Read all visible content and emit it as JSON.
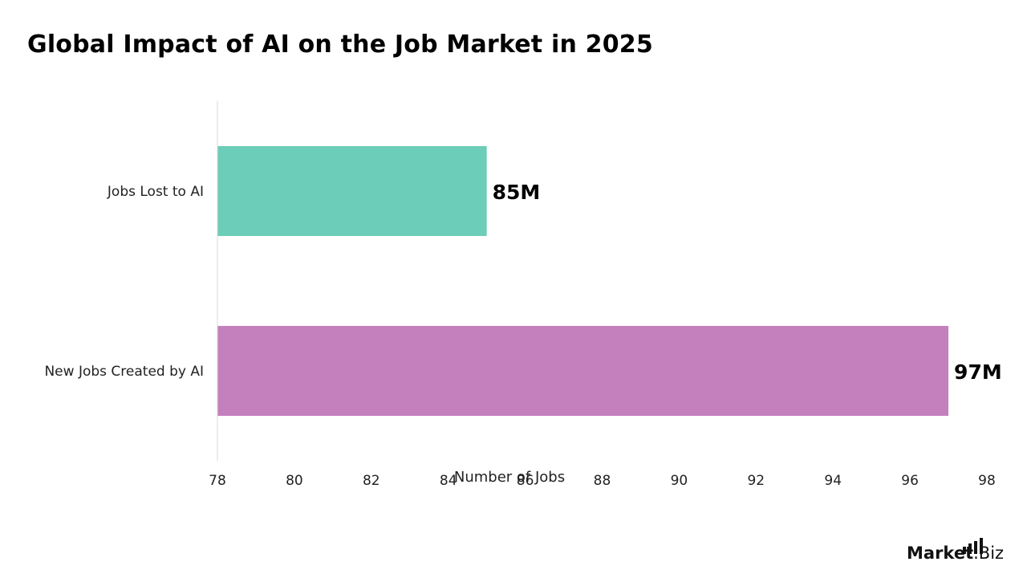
{
  "chart_data": {
    "type": "bar",
    "orientation": "horizontal",
    "title": "Global Impact of AI on the Job Market in 2025",
    "xlabel": "Number of Jobs",
    "ylabel": "",
    "xlim": [
      78,
      98
    ],
    "xticks": [
      "78",
      "80",
      "82",
      "84",
      "86",
      "88",
      "90",
      "92",
      "94",
      "96",
      "98"
    ],
    "categories": [
      "Jobs Lost to AI",
      "New Jobs Created by AI"
    ],
    "values": [
      85,
      97
    ],
    "data_labels": [
      "85M",
      "97M"
    ],
    "colors": [
      "#6ccdb8",
      "#c47fbd"
    ],
    "grid": false,
    "legend": "none"
  },
  "brand": {
    "logo_text": "Market",
    "logo_suffix": ".Biz"
  }
}
